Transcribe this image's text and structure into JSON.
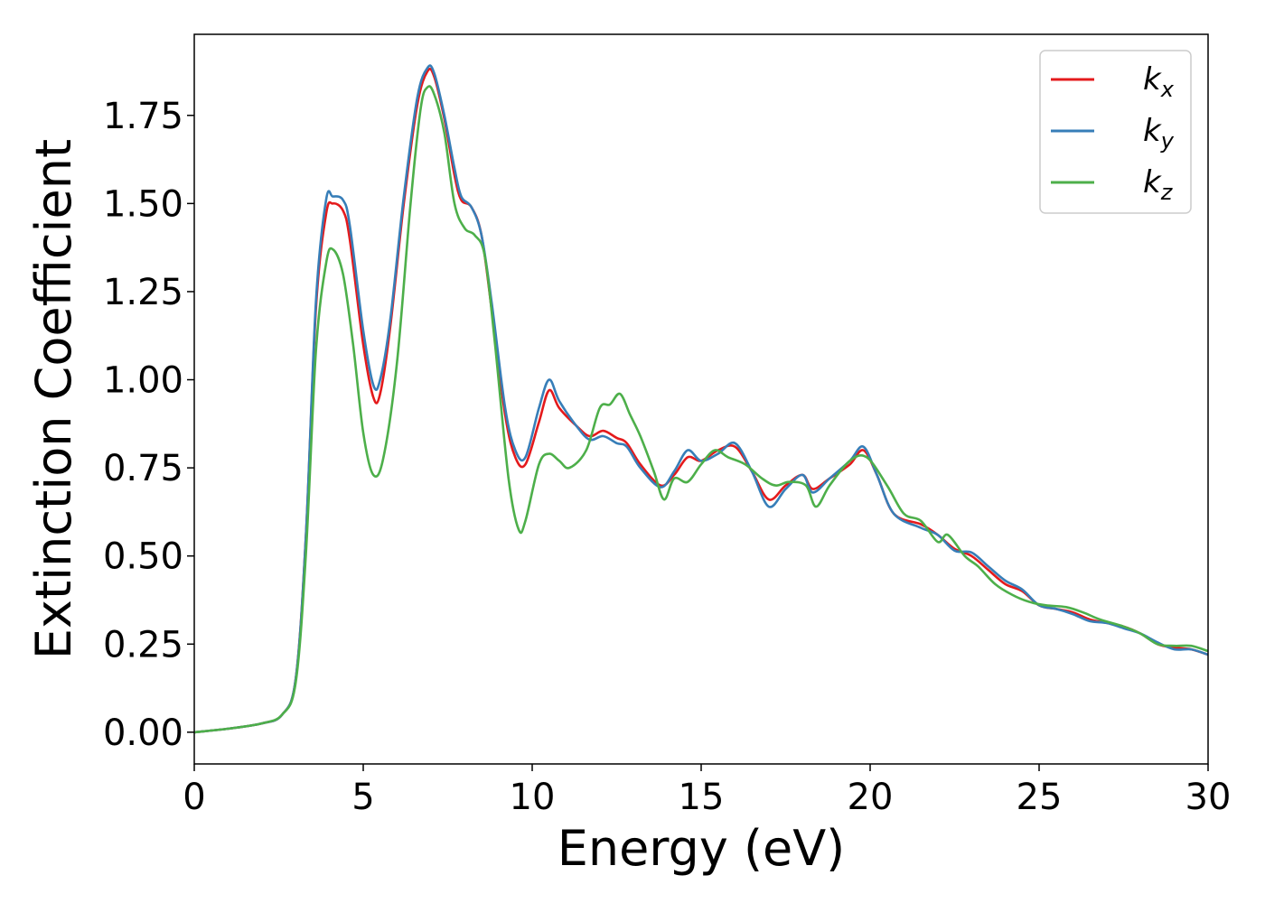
{
  "chart_data": {
    "type": "line",
    "title": "",
    "xlabel": "Energy (eV)",
    "ylabel": "Extinction Coefficient",
    "xlim": [
      0,
      30
    ],
    "ylim": [
      -0.09,
      1.98
    ],
    "xticks": [
      "0",
      "5",
      "10",
      "15",
      "20",
      "25",
      "30"
    ],
    "yticks": [
      "0.00",
      "0.25",
      "0.50",
      "0.75",
      "1.00",
      "1.25",
      "1.50",
      "1.75"
    ],
    "grid": false,
    "legend_position": "top-right",
    "series": [
      {
        "name": "k",
        "subscript": "x",
        "color": "#e41a1c",
        "points": [
          [
            0,
            0
          ],
          [
            1,
            0.01
          ],
          [
            2,
            0.025
          ],
          [
            2.6,
            0.05
          ],
          [
            3,
            0.15
          ],
          [
            3.3,
            0.55
          ],
          [
            3.6,
            1.2
          ],
          [
            3.9,
            1.47
          ],
          [
            4.1,
            1.5
          ],
          [
            4.4,
            1.48
          ],
          [
            4.6,
            1.4
          ],
          [
            5,
            1.1
          ],
          [
            5.3,
            0.95
          ],
          [
            5.5,
            0.96
          ],
          [
            5.8,
            1.15
          ],
          [
            6.2,
            1.5
          ],
          [
            6.6,
            1.78
          ],
          [
            6.9,
            1.875
          ],
          [
            7.1,
            1.86
          ],
          [
            7.4,
            1.74
          ],
          [
            7.7,
            1.58
          ],
          [
            7.9,
            1.51
          ],
          [
            8.2,
            1.49
          ],
          [
            8.5,
            1.41
          ],
          [
            8.8,
            1.2
          ],
          [
            9.2,
            0.9
          ],
          [
            9.5,
            0.78
          ],
          [
            9.8,
            0.76
          ],
          [
            10.2,
            0.88
          ],
          [
            10.5,
            0.97
          ],
          [
            10.8,
            0.92
          ],
          [
            11.3,
            0.87
          ],
          [
            11.7,
            0.84
          ],
          [
            12.1,
            0.855
          ],
          [
            12.5,
            0.835
          ],
          [
            12.8,
            0.82
          ],
          [
            13.2,
            0.76
          ],
          [
            13.8,
            0.7
          ],
          [
            14.2,
            0.73
          ],
          [
            14.6,
            0.78
          ],
          [
            15,
            0.77
          ],
          [
            15.5,
            0.8
          ],
          [
            16,
            0.81
          ],
          [
            16.5,
            0.74
          ],
          [
            17,
            0.66
          ],
          [
            17.5,
            0.7
          ],
          [
            18,
            0.73
          ],
          [
            18.3,
            0.69
          ],
          [
            18.8,
            0.72
          ],
          [
            19.4,
            0.76
          ],
          [
            19.8,
            0.8
          ],
          [
            20.2,
            0.73
          ],
          [
            20.7,
            0.62
          ],
          [
            21.5,
            0.59
          ],
          [
            22,
            0.56
          ],
          [
            22.5,
            0.52
          ],
          [
            23,
            0.5
          ],
          [
            23.5,
            0.46
          ],
          [
            24,
            0.42
          ],
          [
            24.5,
            0.4
          ],
          [
            25,
            0.36
          ],
          [
            25.5,
            0.35
          ],
          [
            26,
            0.34
          ],
          [
            26.5,
            0.32
          ],
          [
            27,
            0.31
          ],
          [
            27.5,
            0.3
          ],
          [
            28,
            0.28
          ],
          [
            28.5,
            0.25
          ],
          [
            29,
            0.24
          ],
          [
            29.5,
            0.235
          ],
          [
            30,
            0.22
          ]
        ]
      },
      {
        "name": "k",
        "subscript": "y",
        "color": "#377eb8",
        "points": [
          [
            0,
            0
          ],
          [
            1,
            0.01
          ],
          [
            2,
            0.025
          ],
          [
            2.6,
            0.05
          ],
          [
            3,
            0.15
          ],
          [
            3.3,
            0.55
          ],
          [
            3.6,
            1.22
          ],
          [
            3.9,
            1.51
          ],
          [
            4.1,
            1.52
          ],
          [
            4.4,
            1.51
          ],
          [
            4.6,
            1.44
          ],
          [
            5,
            1.14
          ],
          [
            5.3,
            0.985
          ],
          [
            5.5,
            1.0
          ],
          [
            5.8,
            1.17
          ],
          [
            6.2,
            1.52
          ],
          [
            6.6,
            1.8
          ],
          [
            6.9,
            1.885
          ],
          [
            7.1,
            1.87
          ],
          [
            7.4,
            1.75
          ],
          [
            7.7,
            1.6
          ],
          [
            7.9,
            1.52
          ],
          [
            8.2,
            1.49
          ],
          [
            8.5,
            1.41
          ],
          [
            8.8,
            1.22
          ],
          [
            9.2,
            0.92
          ],
          [
            9.5,
            0.8
          ],
          [
            9.8,
            0.78
          ],
          [
            10.2,
            0.92
          ],
          [
            10.5,
            1.0
          ],
          [
            10.8,
            0.94
          ],
          [
            11.3,
            0.87
          ],
          [
            11.7,
            0.83
          ],
          [
            12.1,
            0.84
          ],
          [
            12.5,
            0.82
          ],
          [
            12.8,
            0.81
          ],
          [
            13.2,
            0.75
          ],
          [
            13.8,
            0.695
          ],
          [
            14.2,
            0.74
          ],
          [
            14.6,
            0.8
          ],
          [
            15,
            0.77
          ],
          [
            15.5,
            0.79
          ],
          [
            16,
            0.82
          ],
          [
            16.5,
            0.74
          ],
          [
            17,
            0.64
          ],
          [
            17.5,
            0.69
          ],
          [
            18,
            0.73
          ],
          [
            18.3,
            0.68
          ],
          [
            18.8,
            0.72
          ],
          [
            19.4,
            0.77
          ],
          [
            19.8,
            0.81
          ],
          [
            20.2,
            0.73
          ],
          [
            20.7,
            0.62
          ],
          [
            21.5,
            0.58
          ],
          [
            22,
            0.56
          ],
          [
            22.5,
            0.515
          ],
          [
            23,
            0.51
          ],
          [
            23.5,
            0.47
          ],
          [
            24,
            0.43
          ],
          [
            24.5,
            0.405
          ],
          [
            25,
            0.36
          ],
          [
            25.5,
            0.35
          ],
          [
            26,
            0.335
          ],
          [
            26.5,
            0.315
          ],
          [
            27,
            0.31
          ],
          [
            27.5,
            0.295
          ],
          [
            28,
            0.28
          ],
          [
            28.5,
            0.255
          ],
          [
            29,
            0.235
          ],
          [
            29.5,
            0.235
          ],
          [
            30,
            0.22
          ]
        ]
      },
      {
        "name": "k",
        "subscript": "z",
        "color": "#4daf4a",
        "points": [
          [
            0,
            0
          ],
          [
            1,
            0.01
          ],
          [
            2,
            0.025
          ],
          [
            2.6,
            0.05
          ],
          [
            3,
            0.14
          ],
          [
            3.3,
            0.5
          ],
          [
            3.6,
            1.08
          ],
          [
            3.9,
            1.33
          ],
          [
            4.1,
            1.37
          ],
          [
            4.4,
            1.3
          ],
          [
            4.7,
            1.1
          ],
          [
            5,
            0.85
          ],
          [
            5.3,
            0.73
          ],
          [
            5.6,
            0.78
          ],
          [
            6,
            1.05
          ],
          [
            6.4,
            1.5
          ],
          [
            6.7,
            1.77
          ],
          [
            6.9,
            1.83
          ],
          [
            7.1,
            1.81
          ],
          [
            7.4,
            1.7
          ],
          [
            7.7,
            1.5
          ],
          [
            8,
            1.43
          ],
          [
            8.3,
            1.41
          ],
          [
            8.6,
            1.35
          ],
          [
            8.9,
            1.1
          ],
          [
            9.3,
            0.72
          ],
          [
            9.6,
            0.575
          ],
          [
            9.8,
            0.6
          ],
          [
            10.2,
            0.76
          ],
          [
            10.5,
            0.79
          ],
          [
            10.8,
            0.77
          ],
          [
            11.1,
            0.75
          ],
          [
            11.6,
            0.8
          ],
          [
            12,
            0.92
          ],
          [
            12.3,
            0.93
          ],
          [
            12.6,
            0.96
          ],
          [
            12.9,
            0.9
          ],
          [
            13.2,
            0.84
          ],
          [
            13.6,
            0.74
          ],
          [
            13.9,
            0.66
          ],
          [
            14.2,
            0.72
          ],
          [
            14.6,
            0.71
          ],
          [
            15,
            0.76
          ],
          [
            15.4,
            0.8
          ],
          [
            15.8,
            0.78
          ],
          [
            16.3,
            0.76
          ],
          [
            16.8,
            0.72
          ],
          [
            17.2,
            0.7
          ],
          [
            17.6,
            0.71
          ],
          [
            18.1,
            0.7
          ],
          [
            18.4,
            0.64
          ],
          [
            18.8,
            0.7
          ],
          [
            19.4,
            0.77
          ],
          [
            19.9,
            0.78
          ],
          [
            20.5,
            0.7
          ],
          [
            21,
            0.62
          ],
          [
            21.5,
            0.6
          ],
          [
            22,
            0.54
          ],
          [
            22.3,
            0.56
          ],
          [
            22.8,
            0.5
          ],
          [
            23.2,
            0.47
          ],
          [
            23.7,
            0.42
          ],
          [
            24.2,
            0.39
          ],
          [
            24.7,
            0.37
          ],
          [
            25.2,
            0.36
          ],
          [
            25.8,
            0.355
          ],
          [
            26.3,
            0.34
          ],
          [
            26.8,
            0.32
          ],
          [
            27.5,
            0.3
          ],
          [
            28,
            0.28
          ],
          [
            28.5,
            0.25
          ],
          [
            29,
            0.245
          ],
          [
            29.5,
            0.245
          ],
          [
            30,
            0.23
          ]
        ]
      }
    ]
  }
}
